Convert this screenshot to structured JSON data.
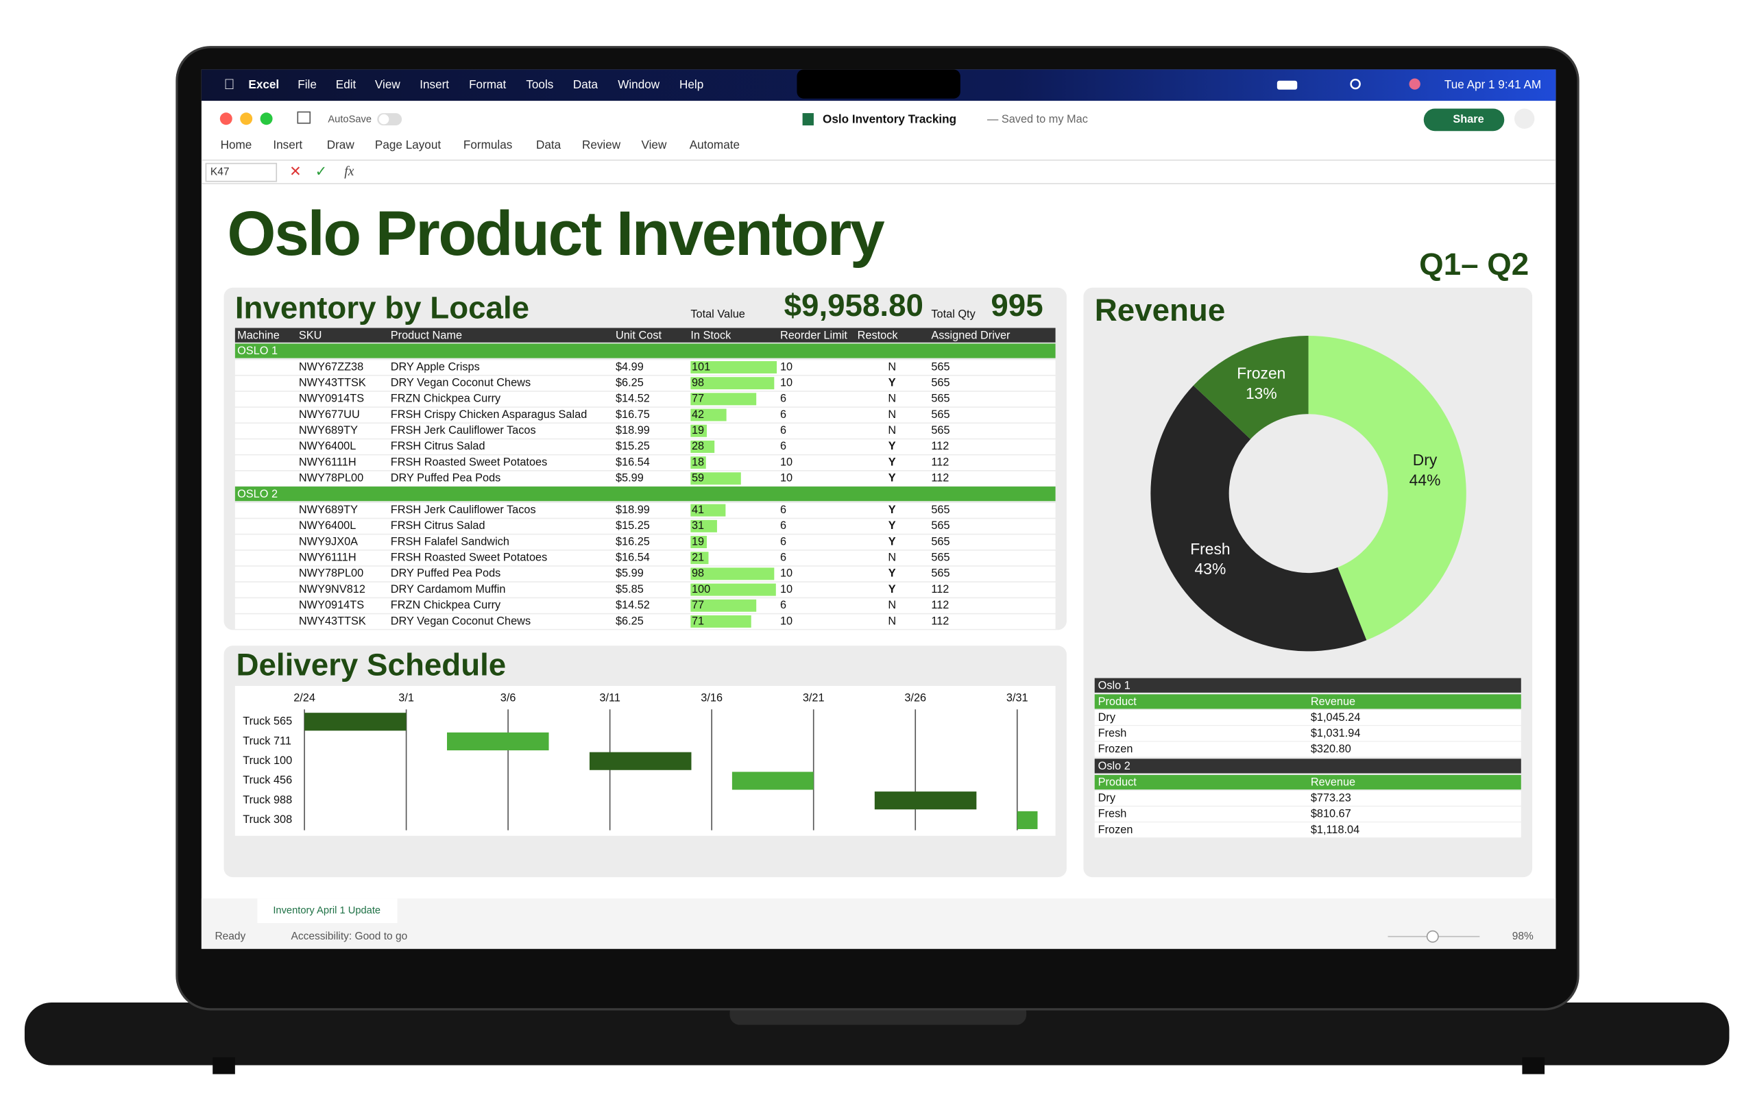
{
  "menu_bar": {
    "app": "Excel",
    "items": [
      "File",
      "Edit",
      "View",
      "Insert",
      "Format",
      "Tools",
      "Data",
      "Window",
      "Help"
    ],
    "clock": "Tue Apr 1  9:41 AM"
  },
  "toolbar": {
    "autosave": "AutoSave",
    "document_title": "Oslo Inventory Tracking",
    "save_status": "— Saved to my Mac",
    "share": "Share"
  },
  "ribbon_tabs": [
    "Home",
    "Insert",
    "Draw",
    "Page Layout",
    "Formulas",
    "Data",
    "Review",
    "View",
    "Automate"
  ],
  "formula_bar": {
    "cell_reference": "K47",
    "function_icon": "fx"
  },
  "sheet": {
    "title": "Oslo Product Inventory",
    "period": "Q1– Q2",
    "inventory": {
      "title": "Inventory by Locale",
      "total_value_label": "Total Value",
      "total_value": "$9,958.80",
      "total_qty_label": "Total Qty",
      "total_qty": 995,
      "columns": [
        "Machine",
        "SKU",
        "Product Name",
        "Unit Cost",
        "In Stock",
        "Reorder Limit",
        "Restock",
        "Assigned Driver"
      ],
      "groups": [
        {
          "name": "OSLO 1",
          "rows": [
            [
              "NWY67ZZ38",
              "DRY Apple Crisps",
              "$4.99",
              101,
              10,
              "N",
              565
            ],
            [
              "NWY43TTSK",
              "DRY Vegan Coconut Chews",
              "$6.25",
              98,
              10,
              "Y",
              565
            ],
            [
              "NWY0914TS",
              "FRZN Chickpea Curry",
              "$14.52",
              77,
              6,
              "N",
              565
            ],
            [
              "NWY677UU",
              "FRSH Crispy Chicken Asparagus Salad",
              "$16.75",
              42,
              6,
              "N",
              565
            ],
            [
              "NWY689TY",
              "FRSH Jerk Cauliflower Tacos",
              "$18.99",
              19,
              6,
              "N",
              565
            ],
            [
              "NWY6400L",
              "FRSH Citrus Salad",
              "$15.25",
              28,
              6,
              "Y",
              112
            ],
            [
              "NWY6111H",
              "FRSH Roasted Sweet Potatoes",
              "$16.54",
              18,
              10,
              "Y",
              112
            ],
            [
              "NWY78PL00",
              "DRY Puffed Pea Pods",
              "$5.99",
              59,
              10,
              "Y",
              112
            ]
          ]
        },
        {
          "name": "OSLO 2",
          "rows": [
            [
              "NWY689TY",
              "FRSH Jerk Cauliflower Tacos",
              "$18.99",
              41,
              6,
              "Y",
              565
            ],
            [
              "NWY6400L",
              "FRSH Citrus Salad",
              "$15.25",
              31,
              6,
              "Y",
              565
            ],
            [
              "NWY9JX0A",
              "FRSH Falafel Sandwich",
              "$16.25",
              19,
              6,
              "Y",
              565
            ],
            [
              "NWY6111H",
              "FRSH Roasted Sweet Potatoes",
              "$16.54",
              21,
              6,
              "N",
              565
            ],
            [
              "NWY78PL00",
              "DRY Puffed Pea Pods",
              "$5.99",
              98,
              10,
              "Y",
              565
            ],
            [
              "NWY9NV812",
              "DRY  Cardamom Muffin",
              "$5.85",
              100,
              10,
              "Y",
              112
            ],
            [
              "NWY0914TS",
              "FRZN Chickpea Curry",
              "$14.52",
              77,
              6,
              "N",
              112
            ],
            [
              "NWY43TTSK",
              "DRY Vegan Coconut Chews",
              "$6.25",
              71,
              10,
              "N",
              112
            ]
          ]
        }
      ]
    },
    "delivery_schedule": {
      "type": "gantt",
      "title": "Delivery Schedule",
      "categories": [
        "Truck 565",
        "Truck 711",
        "Truck 100",
        "Truck 456",
        "Truck 988",
        "Truck 308"
      ],
      "start": [
        0,
        7,
        14,
        21,
        28,
        35
      ],
      "end": [
        5,
        12,
        19,
        25,
        33,
        36
      ],
      "colors": [
        "#2c5e1a",
        "#4caf3a",
        "#2c5e1a",
        "#4caf3a",
        "#2c5e1a",
        "#4caf3a"
      ],
      "xlim": [
        0,
        36
      ],
      "xticks": [
        {
          "value": 0,
          "label": "2/24"
        },
        {
          "value": 5,
          "label": "3/1"
        },
        {
          "value": 10,
          "label": "3/6"
        },
        {
          "value": 15,
          "label": "3/11"
        },
        {
          "value": 20,
          "label": "3/16"
        },
        {
          "value": 25,
          "label": "3/21"
        },
        {
          "value": 30,
          "label": "3/26"
        },
        {
          "value": 35,
          "label": "3/31"
        }
      ]
    },
    "revenue": {
      "chart": {
        "type": "donut",
        "title": "Revenue",
        "categories": [
          "Dry",
          "Fresh",
          "Frozen"
        ],
        "values": [
          44,
          43,
          13
        ],
        "value_labels": [
          "44%",
          "43%",
          "13%"
        ],
        "colors": [
          "#a4f57f",
          "#262626",
          "#3c7a28"
        ]
      },
      "tables": [
        {
          "name": "Oslo 1",
          "columns": [
            "Product",
            "Revenue"
          ],
          "rows": [
            [
              "Dry",
              "$1,045.24"
            ],
            [
              "Fresh",
              "$1,031.94"
            ],
            [
              "Frozen",
              "$320.80"
            ]
          ]
        },
        {
          "name": "Oslo 2",
          "columns": [
            "Product",
            "Revenue"
          ],
          "rows": [
            [
              "Dry",
              "$773.23"
            ],
            [
              "Fresh",
              "$810.67"
            ],
            [
              "Frozen",
              "$1,118.04"
            ]
          ]
        }
      ]
    }
  },
  "sheet_tabs": [
    "Inventory April 1 Update"
  ],
  "status_bar": {
    "status": "Ready",
    "accessibility": "Accessibility: Good to go",
    "zoom": "98%"
  }
}
